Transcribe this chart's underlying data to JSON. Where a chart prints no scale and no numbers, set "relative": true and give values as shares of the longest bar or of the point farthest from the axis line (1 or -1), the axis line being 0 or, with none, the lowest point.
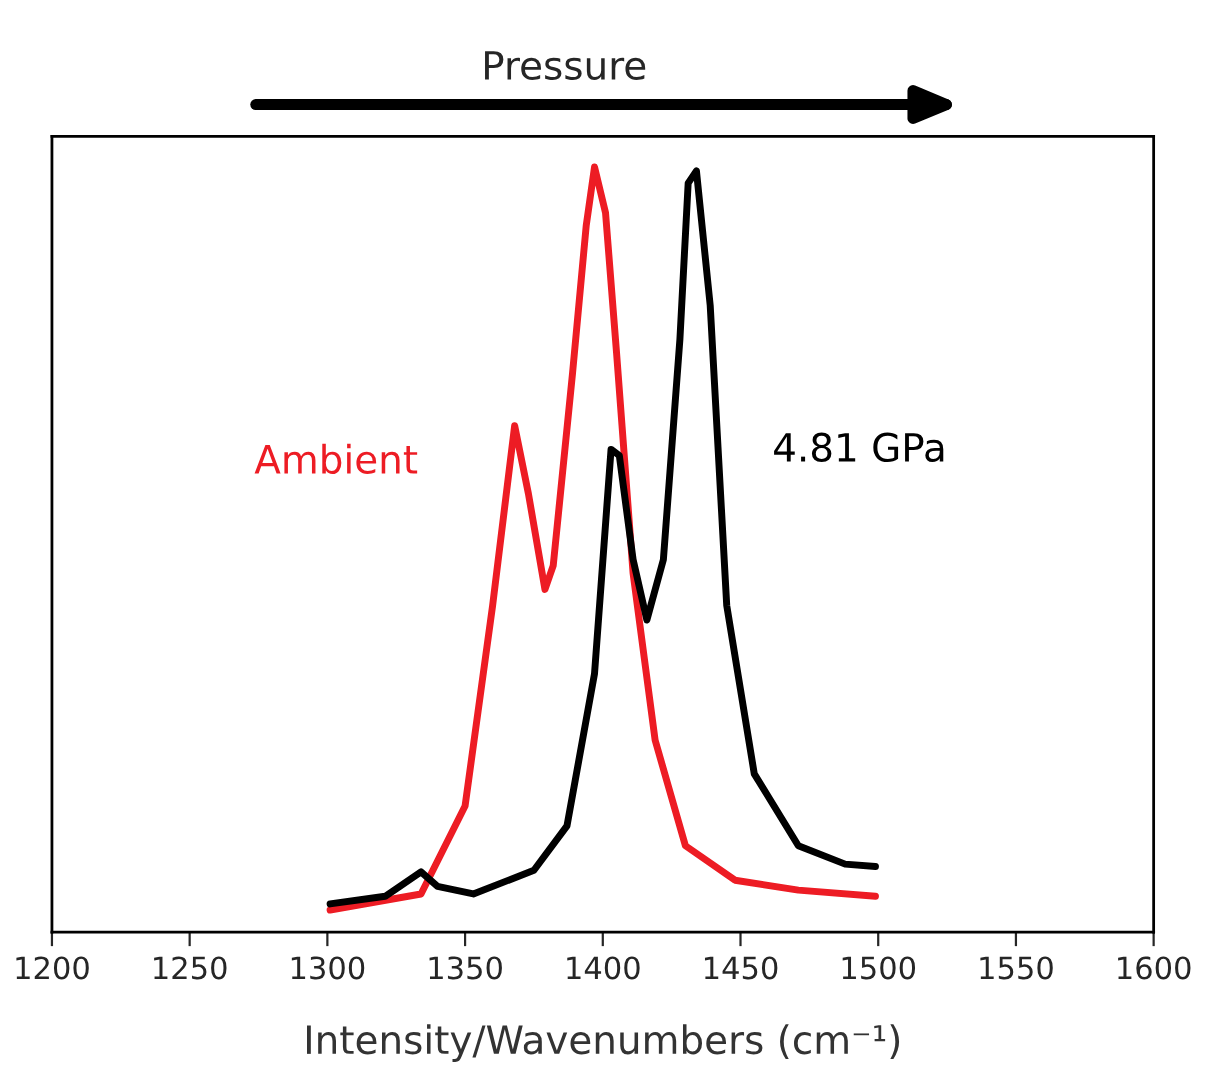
{
  "chart_data": {
    "type": "line",
    "relative": true,
    "xlabel": "Intensity/Wavenumbers (cm⁻¹)",
    "xlim": [
      1200,
      1600
    ],
    "xticks": [
      1200,
      1250,
      1300,
      1350,
      1400,
      1450,
      1500,
      1550,
      1600
    ],
    "tick_labels": "x",
    "grid": false,
    "legend": false,
    "marker": "none",
    "line_style": "solid",
    "annotations": [
      "Pressure"
    ],
    "series": [
      {
        "name": "Ambient",
        "color": "#ed1c24",
        "x": [
          1301,
          1334,
          1350,
          1360,
          1368,
          1373,
          1379,
          1382,
          1389,
          1394,
          1397,
          1401,
          1405,
          1411,
          1419,
          1430,
          1448,
          1471,
          1499
        ],
        "values": [
          0.029,
          0.05,
          0.165,
          0.427,
          0.662,
          0.573,
          0.448,
          0.479,
          0.73,
          0.924,
          1.0,
          0.94,
          0.757,
          0.469,
          0.251,
          0.113,
          0.068,
          0.055,
          0.047
        ]
      },
      {
        "name": "4.81 GPa",
        "color": "#000000",
        "x": [
          1301,
          1321,
          1334,
          1340,
          1353,
          1375,
          1387,
          1397,
          1403,
          1406,
          1411,
          1416,
          1422,
          1428,
          1431,
          1434,
          1439,
          1445,
          1455,
          1471,
          1488,
          1499
        ],
        "values": [
          0.037,
          0.047,
          0.079,
          0.06,
          0.05,
          0.081,
          0.139,
          0.338,
          0.631,
          0.623,
          0.487,
          0.408,
          0.487,
          0.775,
          0.979,
          0.995,
          0.819,
          0.427,
          0.207,
          0.113,
          0.089,
          0.086
        ]
      }
    ]
  }
}
